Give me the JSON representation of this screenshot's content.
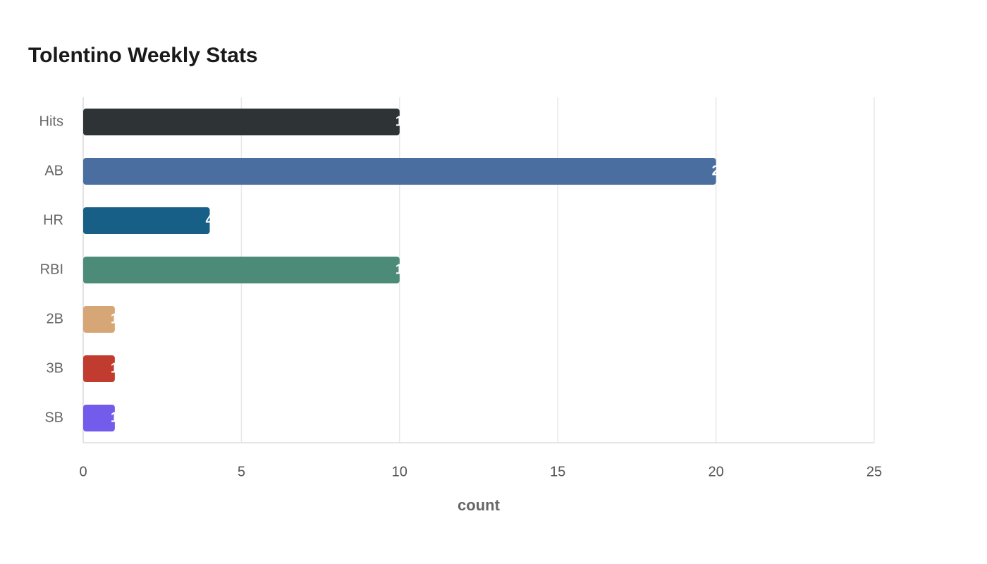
{
  "chart_data": {
    "type": "bar",
    "orientation": "horizontal",
    "title": "Tolentino Weekly Stats",
    "x_label": "count",
    "categories": [
      "Hits",
      "AB",
      "HR",
      "RBI",
      "2B",
      "3B",
      "SB"
    ],
    "values": [
      10,
      20,
      4,
      10,
      1,
      1,
      1
    ],
    "colors": [
      "#2e3436",
      "#4a6ea0",
      "#175f86",
      "#4d8b79",
      "#d6a677",
      "#c13b2e",
      "#735cec"
    ],
    "xlim": [
      0,
      25
    ],
    "xticks": [
      0,
      5,
      10,
      15,
      20,
      25
    ],
    "grid": true
  }
}
